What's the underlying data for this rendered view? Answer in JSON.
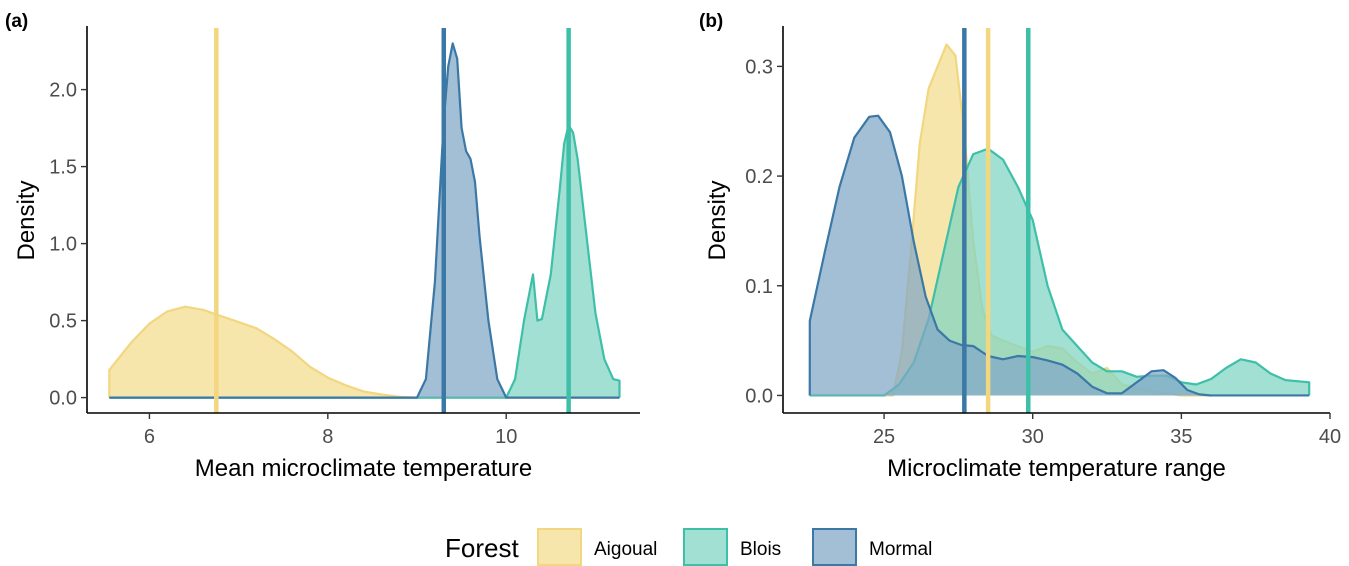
{
  "legend": {
    "title": "Forest",
    "items": [
      {
        "name": "Aigoual",
        "fill": "#f3dc8c",
        "line": "#f2d680"
      },
      {
        "name": "Blois",
        "fill": "#7fd4c3",
        "line": "#3dbfa8"
      },
      {
        "name": "Mormal",
        "fill": "#7fa6c6",
        "line": "#3b78a6"
      }
    ]
  },
  "chart_data": [
    {
      "type": "area",
      "panel_tag": "(a)",
      "xlabel": "Mean microclimate temperature",
      "ylabel": "Density",
      "xlim": [
        5.3,
        11.5
      ],
      "ylim": [
        -0.1,
        2.4
      ],
      "xticks": [
        6,
        8,
        10
      ],
      "yticks": [
        0.0,
        0.5,
        1.0,
        1.5,
        2.0
      ],
      "ytick_labels": [
        "0.0",
        "0.5",
        "1.0",
        "1.5",
        "2.0"
      ],
      "grid": false,
      "series": [
        {
          "name": "Aigoual",
          "mean": 6.75,
          "x": [
            5.55,
            5.8,
            6.0,
            6.2,
            6.4,
            6.6,
            6.8,
            7.0,
            7.2,
            7.4,
            7.6,
            7.8,
            8.0,
            8.2,
            8.4,
            8.6,
            8.8,
            9.0
          ],
          "y": [
            0.18,
            0.36,
            0.48,
            0.56,
            0.59,
            0.57,
            0.53,
            0.49,
            0.45,
            0.38,
            0.3,
            0.2,
            0.13,
            0.08,
            0.04,
            0.02,
            0.005,
            0.0
          ]
        },
        {
          "name": "Blois",
          "mean": 10.7,
          "x": [
            10.0,
            10.1,
            10.2,
            10.3,
            10.35,
            10.4,
            10.5,
            10.6,
            10.65,
            10.7,
            10.75,
            10.8,
            10.9,
            11.0,
            11.1,
            11.2,
            11.27
          ],
          "y": [
            0.0,
            0.12,
            0.5,
            0.8,
            0.5,
            0.51,
            0.8,
            1.35,
            1.65,
            1.77,
            1.72,
            1.55,
            1.05,
            0.55,
            0.25,
            0.12,
            0.11
          ]
        },
        {
          "name": "Mormal",
          "mean": 9.3,
          "x": [
            9.0,
            9.1,
            9.2,
            9.3,
            9.35,
            9.4,
            9.45,
            9.5,
            9.55,
            9.6,
            9.65,
            9.7,
            9.8,
            9.9,
            10.0
          ],
          "y": [
            0.0,
            0.12,
            0.75,
            1.8,
            2.15,
            2.3,
            2.2,
            1.75,
            1.6,
            1.55,
            1.4,
            1.05,
            0.5,
            0.12,
            0.0
          ]
        }
      ]
    },
    {
      "type": "area",
      "panel_tag": "(b)",
      "xlabel": "Microclimate temperature range",
      "ylabel": "Density",
      "xlim": [
        21.6,
        40.0
      ],
      "ylim": [
        -0.016,
        0.335
      ],
      "xticks": [
        25,
        30,
        35,
        40
      ],
      "yticks": [
        0.0,
        0.1,
        0.2,
        0.3
      ],
      "ytick_labels": [
        "0.0",
        "0.1",
        "0.2",
        "0.3"
      ],
      "grid": false,
      "series": [
        {
          "name": "Aigoual",
          "mean": 28.5,
          "x": [
            25.3,
            25.6,
            25.9,
            26.2,
            26.5,
            26.8,
            27.1,
            27.4,
            27.7,
            28.0,
            28.3,
            28.6,
            29.0,
            29.5,
            30.0,
            30.5,
            31.0,
            31.5,
            32.0,
            32.5,
            33.0,
            34.0,
            35.0
          ],
          "y": [
            0.0,
            0.04,
            0.13,
            0.23,
            0.28,
            0.3,
            0.32,
            0.31,
            0.24,
            0.14,
            0.08,
            0.055,
            0.05,
            0.045,
            0.04,
            0.045,
            0.043,
            0.03,
            0.02,
            0.025,
            0.01,
            0.004,
            0.0
          ]
        },
        {
          "name": "Blois",
          "mean": 29.85,
          "x": [
            25.0,
            25.5,
            26.0,
            26.5,
            27.0,
            27.5,
            28.0,
            28.5,
            29.0,
            29.5,
            30.0,
            30.5,
            31.0,
            31.5,
            32.0,
            32.5,
            33.0,
            33.5,
            34.0,
            34.5,
            35.0,
            35.5,
            36.0,
            36.5,
            37.0,
            37.5,
            38.0,
            38.5,
            39.3
          ],
          "y": [
            0.0,
            0.01,
            0.03,
            0.07,
            0.13,
            0.19,
            0.22,
            0.225,
            0.215,
            0.19,
            0.16,
            0.1,
            0.06,
            0.045,
            0.03,
            0.022,
            0.022,
            0.017,
            0.018,
            0.018,
            0.012,
            0.01,
            0.015,
            0.025,
            0.033,
            0.03,
            0.02,
            0.014,
            0.012
          ]
        },
        {
          "name": "Mormal",
          "mean": 27.7,
          "x": [
            22.5,
            23.0,
            23.5,
            24.0,
            24.5,
            24.8,
            25.2,
            25.6,
            26.0,
            26.4,
            26.8,
            27.2,
            27.6,
            28.0,
            28.5,
            29.0,
            29.5,
            30.0,
            30.5,
            31.0,
            31.5,
            32.0,
            32.5,
            33.0,
            33.5,
            34.0,
            34.4,
            34.8,
            35.2,
            35.6,
            36.0
          ],
          "y": [
            0.068,
            0.13,
            0.19,
            0.235,
            0.254,
            0.255,
            0.24,
            0.2,
            0.14,
            0.09,
            0.06,
            0.05,
            0.046,
            0.045,
            0.036,
            0.033,
            0.036,
            0.035,
            0.032,
            0.028,
            0.02,
            0.008,
            0.002,
            0.002,
            0.012,
            0.022,
            0.023,
            0.016,
            0.005,
            0.001,
            0.0
          ]
        }
      ]
    }
  ]
}
